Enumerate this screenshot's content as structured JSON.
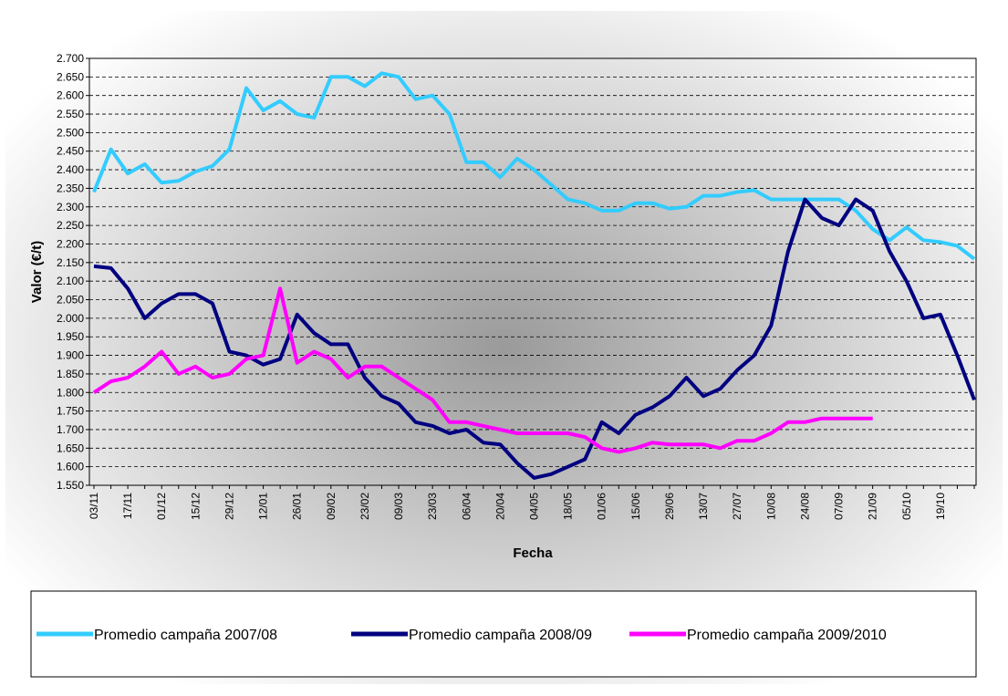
{
  "chart_data": {
    "type": "line",
    "x_label": "Fecha",
    "y_label": "Valor (€/t)",
    "categories": [
      "03/11",
      null,
      "17/11",
      null,
      "01/12",
      null,
      "15/12",
      null,
      "29/12",
      null,
      "12/01",
      null,
      "26/01",
      null,
      "09/02",
      null,
      "23/02",
      null,
      "09/03",
      null,
      "23/03",
      null,
      "06/04",
      null,
      "20/04",
      null,
      "04/05",
      null,
      "18/05",
      null,
      "01/06",
      null,
      "15/06",
      null,
      "29/06",
      null,
      "13/07",
      null,
      "27/07",
      null,
      "10/08",
      null,
      "24/08",
      null,
      "07/09",
      null,
      "21/09",
      null,
      "05/10",
      null,
      "19/10",
      null,
      null
    ],
    "series": [
      {
        "name": "Promedio campaña 2007/08",
        "color": "#33ccff",
        "values": [
          2340,
          2455,
          2390,
          2415,
          2365,
          2370,
          2395,
          2410,
          2455,
          2620,
          2560,
          2585,
          2550,
          2540,
          2650,
          2650,
          2625,
          2660,
          2650,
          2590,
          2600,
          2550,
          2420,
          2420,
          2380,
          2430,
          2400,
          2360,
          2320,
          2310,
          2290,
          2290,
          2310,
          2310,
          2295,
          2300,
          2330,
          2330,
          2340,
          2345,
          2320,
          2320,
          2320,
          2320,
          2320,
          2290,
          2240,
          2210,
          2245,
          2210,
          2205,
          2195,
          2160
        ]
      },
      {
        "name": "Promedio campaña 2008/09",
        "color": "#000080",
        "values": [
          2140,
          2135,
          2080,
          2000,
          2040,
          2065,
          2065,
          2040,
          1910,
          1900,
          1875,
          1890,
          2010,
          1960,
          1930,
          1930,
          1840,
          1790,
          1770,
          1720,
          1710,
          1690,
          1700,
          1665,
          1660,
          1610,
          1570,
          1580,
          1600,
          1620,
          1720,
          1690,
          1740,
          1760,
          1790,
          1840,
          1790,
          1810,
          1860,
          1900,
          1980,
          2180,
          2320,
          2270,
          2250,
          2320,
          2290,
          2180,
          2100,
          2000,
          2010,
          1900,
          1780
        ]
      },
      {
        "name": "Promedio campaña 2009/2010",
        "color": "#ff00ff",
        "values": [
          1800,
          1830,
          1840,
          1870,
          1910,
          1850,
          1870,
          1840,
          1850,
          1890,
          1900,
          2080,
          1880,
          1910,
          1890,
          1840,
          1870,
          1870,
          1840,
          1810,
          1780,
          1720,
          1720,
          1710,
          1700,
          1690,
          1690,
          1690,
          1690,
          1680,
          1650,
          1640,
          1650,
          1665,
          1660,
          1660,
          1660,
          1650,
          1670,
          1670,
          1690,
          1720,
          1720,
          1730,
          1730,
          1730,
          1730,
          null,
          null,
          null,
          null,
          null,
          null
        ]
      }
    ],
    "ylim": [
      1550,
      2700
    ],
    "yticks": [
      {
        "value": 1550,
        "label": "1.550"
      },
      {
        "value": 1600,
        "label": "1.600"
      },
      {
        "value": 1650,
        "label": "1.650"
      },
      {
        "value": 1700,
        "label": "1.700"
      },
      {
        "value": 1750,
        "label": "1.750"
      },
      {
        "value": 1800,
        "label": "1.800"
      },
      {
        "value": 1850,
        "label": "1.850"
      },
      {
        "value": 1900,
        "label": "1.900"
      },
      {
        "value": 1950,
        "label": "1.950"
      },
      {
        "value": 2000,
        "label": "2.000"
      },
      {
        "value": 2050,
        "label": "2.050"
      },
      {
        "value": 2100,
        "label": "2.100"
      },
      {
        "value": 2150,
        "label": "2.150"
      },
      {
        "value": 2200,
        "label": "2.200"
      },
      {
        "value": 2250,
        "label": "2.250"
      },
      {
        "value": 2300,
        "label": "2.300"
      },
      {
        "value": 2350,
        "label": "2.350"
      },
      {
        "value": 2400,
        "label": "2.400"
      },
      {
        "value": 2450,
        "label": "2.450"
      },
      {
        "value": 2500,
        "label": "2.500"
      },
      {
        "value": 2550,
        "label": "2.550"
      },
      {
        "value": 2600,
        "label": "2.600"
      },
      {
        "value": 2650,
        "label": "2.650"
      },
      {
        "value": 2700,
        "label": "2.700"
      }
    ],
    "grid": true,
    "legend": "bottom"
  }
}
